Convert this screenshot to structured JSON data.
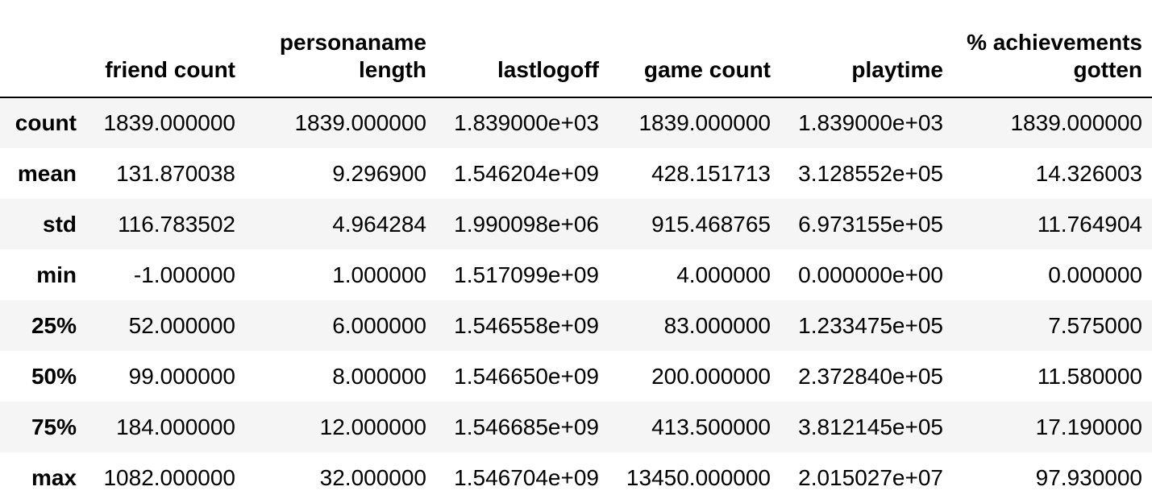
{
  "table": {
    "index_header": "",
    "columns": [
      "friend count",
      "personaname length",
      "lastlogoff",
      "game count",
      "playtime",
      "% achievements gotten"
    ],
    "rows": [
      {
        "label": "count",
        "values": [
          "1839.000000",
          "1839.000000",
          "1.839000e+03",
          "1839.000000",
          "1.839000e+03",
          "1839.000000"
        ]
      },
      {
        "label": "mean",
        "values": [
          "131.870038",
          "9.296900",
          "1.546204e+09",
          "428.151713",
          "3.128552e+05",
          "14.326003"
        ]
      },
      {
        "label": "std",
        "values": [
          "116.783502",
          "4.964284",
          "1.990098e+06",
          "915.468765",
          "6.973155e+05",
          "11.764904"
        ]
      },
      {
        "label": "min",
        "values": [
          "-1.000000",
          "1.000000",
          "1.517099e+09",
          "4.000000",
          "0.000000e+00",
          "0.000000"
        ]
      },
      {
        "label": "25%",
        "values": [
          "52.000000",
          "6.000000",
          "1.546558e+09",
          "83.000000",
          "1.233475e+05",
          "7.575000"
        ]
      },
      {
        "label": "50%",
        "values": [
          "99.000000",
          "8.000000",
          "1.546650e+09",
          "200.000000",
          "2.372840e+05",
          "11.580000"
        ]
      },
      {
        "label": "75%",
        "values": [
          "184.000000",
          "12.000000",
          "1.546685e+09",
          "413.500000",
          "3.812145e+05",
          "17.190000"
        ]
      },
      {
        "label": "max",
        "values": [
          "1082.000000",
          "32.000000",
          "1.546704e+09",
          "13450.000000",
          "2.015027e+07",
          "97.930000"
        ]
      }
    ]
  }
}
